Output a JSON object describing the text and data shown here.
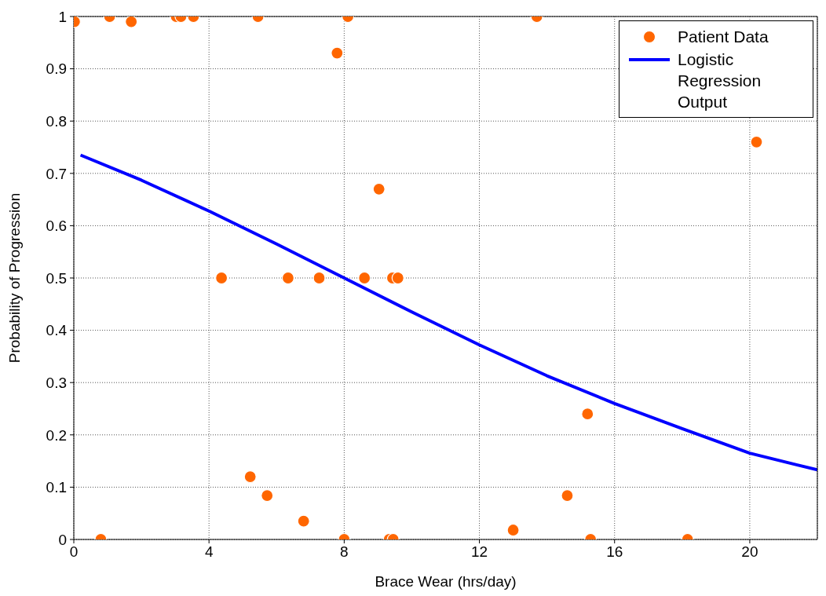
{
  "chart_data": {
    "type": "scatter",
    "xlabel": "Brace Wear (hrs/day)",
    "ylabel": "Probability of Progression",
    "xlim": [
      0,
      22
    ],
    "xticks": [
      0,
      4,
      8,
      12,
      16,
      20
    ],
    "ylim": [
      0,
      1
    ],
    "yticks": [
      0,
      0.1,
      0.2,
      0.3,
      0.4,
      0.5,
      0.6,
      0.7,
      0.8,
      0.9,
      1
    ],
    "grid": true,
    "legend": "top right",
    "series": [
      {
        "name": "Patient Data",
        "marker": "circle",
        "color": "#ff6600",
        "x": [
          0.02,
          1.06,
          1.7,
          3.03,
          3.17,
          3.54,
          5.45,
          8.11,
          13.7,
          7.79,
          9.03,
          20.2,
          4.37,
          6.34,
          7.26,
          8.6,
          9.43,
          9.59,
          15.2,
          5.22,
          5.72,
          6.8,
          14.6,
          13.0,
          0.8,
          8.0,
          9.33,
          9.45,
          15.29,
          18.16
        ],
        "values": [
          0.99,
          1,
          0.99,
          1,
          1,
          1,
          1,
          1,
          1,
          0.93,
          0.67,
          0.76,
          0.5,
          0.5,
          0.5,
          0.5,
          0.5,
          0.5,
          0.24,
          0.12,
          0.084,
          0.035,
          0.084,
          0.018,
          0,
          0,
          0,
          0,
          0,
          0
        ]
      },
      {
        "name": "Logistic Regression Output",
        "type": "line",
        "color": "#0000ff",
        "line_style": "solid",
        "x": [
          0.2,
          2,
          4,
          6,
          8,
          10,
          12,
          14,
          16,
          18,
          20,
          22
        ],
        "values": [
          0.735,
          0.687,
          0.628,
          0.565,
          0.5,
          0.435,
          0.372,
          0.313,
          0.26,
          0.212,
          0.165,
          0.133
        ]
      }
    ]
  }
}
